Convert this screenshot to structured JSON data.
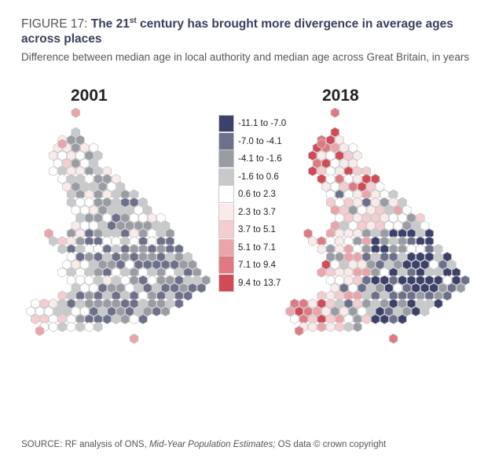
{
  "figure": {
    "label": "FIGURE 17:",
    "title_pre": "The 21",
    "title_sup": "st",
    "title_post": " century has brought more divergence in average ages across places",
    "subtitle": "Difference between median age in local authority and median age across Great Britain, in years"
  },
  "maps": [
    {
      "year": "2001"
    },
    {
      "year": "2018"
    }
  ],
  "legend": {
    "items": [
      {
        "label": "-11.1 to -7.0",
        "color": "#3b416a"
      },
      {
        "label": "-7.0 to -4.1",
        "color": "#6c708a"
      },
      {
        "label": "-4.1 to -1.6",
        "color": "#9a9ca4"
      },
      {
        "label": "-1.6 to 0.6",
        "color": "#c8c9cb"
      },
      {
        "label": "0.6 to 2.3",
        "color": "#ffffff"
      },
      {
        "label": "2.3 to 3.7",
        "color": "#fbeaea"
      },
      {
        "label": "3.7 to 5.1",
        "color": "#f5cdd0"
      },
      {
        "label": "5.1 to 7.1",
        "color": "#eba4aa"
      },
      {
        "label": "7.1 to 9.4",
        "color": "#e07a82"
      },
      {
        "label": "9.4 to 13.7",
        "color": "#d24a55"
      }
    ]
  },
  "source": {
    "prefix": "SOURCE: RF analysis of ONS, ",
    "italic": "Mid-Year Population Estimates;",
    "suffix": " OS data © crown copyright"
  }
}
